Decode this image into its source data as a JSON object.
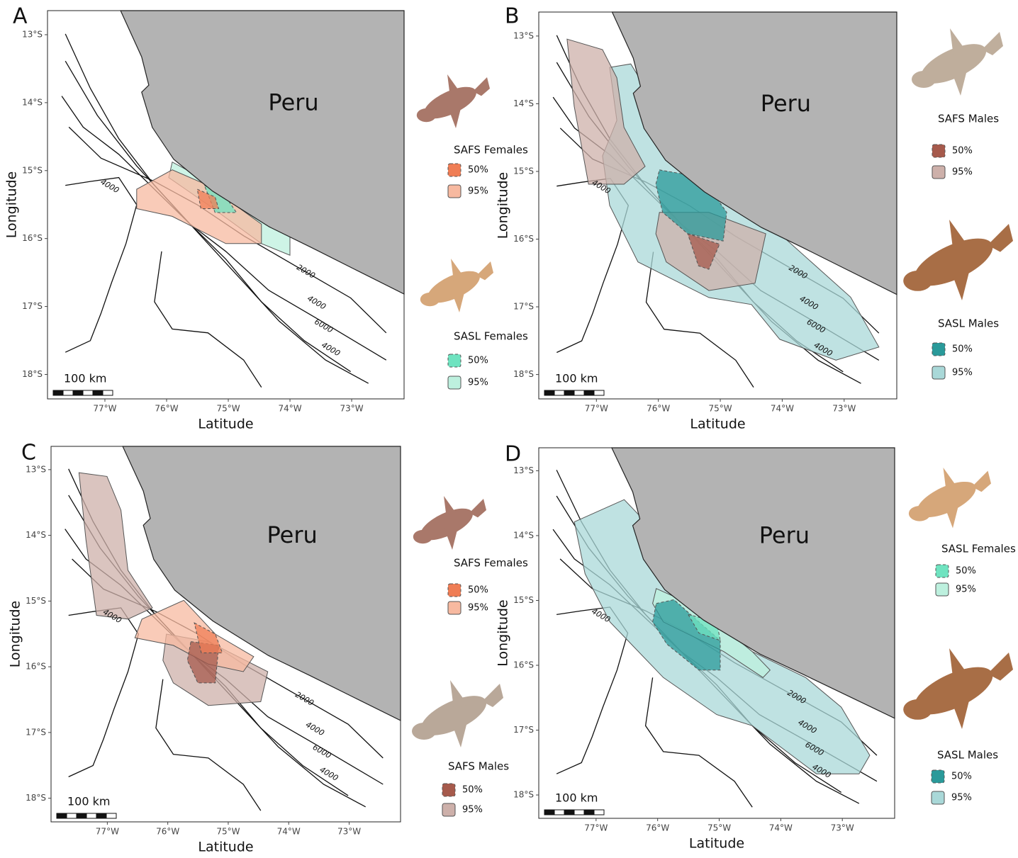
{
  "panels": [
    {
      "letter": "A",
      "country": "Peru",
      "x_label": "Latitude",
      "y_label": "Longitude",
      "lat_ticks": [
        "13°S",
        "14°S",
        "15°S",
        "16°S",
        "17°S",
        "18°S"
      ],
      "lon_ticks": [
        "77°W",
        "76°W",
        "75°W",
        "74°W",
        "73°W"
      ],
      "contour_labels": [
        "4000",
        "2000",
        "4000",
        "6000",
        "4000"
      ],
      "scale_label": "100 km",
      "legend": [
        {
          "title": "SAFS Females",
          "items": [
            {
              "label": "50%",
              "color": "#ef7d55"
            },
            {
              "label": "95%",
              "color": "#f7b9a0"
            }
          ]
        },
        {
          "title": "SASL Females",
          "items": [
            {
              "label": "50%",
              "color": "#6fe3c0"
            },
            {
              "label": "95%",
              "color": "#bdf0de"
            }
          ]
        }
      ]
    },
    {
      "letter": "B",
      "country": "Peru",
      "x_label": "Latitude",
      "y_label": "Longitude",
      "lat_ticks": [
        "13°S",
        "14°S",
        "15°S",
        "16°S",
        "17°S",
        "18°S"
      ],
      "lon_ticks": [
        "77°W",
        "76°W",
        "75°W",
        "74°W",
        "73°W"
      ],
      "contour_labels": [
        "4000",
        "2000",
        "4000",
        "6000",
        "4000"
      ],
      "scale_label": "100 km",
      "legend": [
        {
          "title": "SAFS Males",
          "items": [
            {
              "label": "50%",
              "color": "#a65a4c"
            },
            {
              "label": "95%",
              "color": "#cdb0aa"
            }
          ]
        },
        {
          "title": "SASL Males",
          "items": [
            {
              "label": "50%",
              "color": "#2a9a9a"
            },
            {
              "label": "95%",
              "color": "#a9d8d8"
            }
          ]
        }
      ]
    },
    {
      "letter": "C",
      "country": "Peru",
      "x_label": "Latitude",
      "y_label": "Longitude",
      "lat_ticks": [
        "13°S",
        "14°S",
        "15°S",
        "16°S",
        "17°S",
        "18°S"
      ],
      "lon_ticks": [
        "77°W",
        "76°W",
        "75°W",
        "74°W",
        "73°W"
      ],
      "contour_labels": [
        "4000",
        "2000",
        "4000",
        "6000",
        "4000"
      ],
      "scale_label": "100 km",
      "legend": [
        {
          "title": "SAFS Females",
          "items": [
            {
              "label": "50%",
              "color": "#ef7d55"
            },
            {
              "label": "95%",
              "color": "#f7b9a0"
            }
          ]
        },
        {
          "title": "SAFS Males",
          "items": [
            {
              "label": "50%",
              "color": "#a65a4c"
            },
            {
              "label": "95%",
              "color": "#cdb0aa"
            }
          ]
        }
      ]
    },
    {
      "letter": "D",
      "country": "Peru",
      "x_label": "Latitude",
      "y_label": "Longitude",
      "lat_ticks": [
        "13°S",
        "14°S",
        "15°S",
        "16°S",
        "17°S",
        "18°S"
      ],
      "lon_ticks": [
        "77°W",
        "76°W",
        "75°W",
        "74°W",
        "73°W"
      ],
      "contour_labels": [
        "4000",
        "2000",
        "4000",
        "6000",
        "4000"
      ],
      "scale_label": "100 km",
      "legend": [
        {
          "title": "SASL Females",
          "items": [
            {
              "label": "50%",
              "color": "#6fe3c0"
            },
            {
              "label": "95%",
              "color": "#bdf0de"
            }
          ]
        },
        {
          "title": "SASL Males",
          "items": [
            {
              "label": "50%",
              "color": "#2a9a9a"
            },
            {
              "label": "95%",
              "color": "#a9d8d8"
            }
          ]
        }
      ]
    }
  ]
}
